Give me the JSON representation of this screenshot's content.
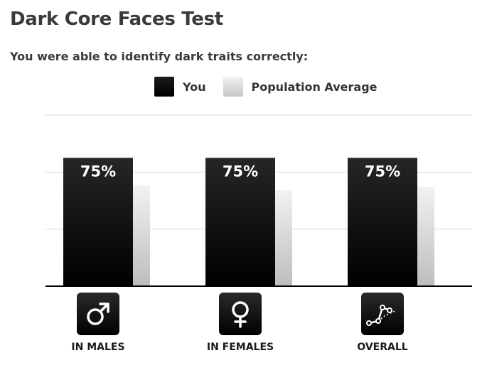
{
  "page": {
    "title": "Dark Core Faces Test",
    "subtitle": "You were able to identify dark traits correctly:"
  },
  "legend": {
    "you_label": "You",
    "avg_label": "Population Average"
  },
  "icons": [
    "male-symbol-icon",
    "female-symbol-icon",
    "line-graph-icon"
  ],
  "colors": {
    "you_bar": "#000000",
    "avg_bar_top": "#f2f2f2",
    "avg_bar_bottom": "#c2c2c2",
    "gridline": "#d9d9d9",
    "axis": "#000000"
  },
  "chart_data": {
    "type": "bar",
    "title": "Dark Core Faces Test",
    "categories": [
      "IN MALES",
      "IN FEMALES",
      "OVERALL"
    ],
    "series": [
      {
        "name": "You",
        "values": [
          75,
          75,
          75
        ],
        "data_labels": [
          "75%",
          "75%",
          "75%"
        ]
      },
      {
        "name": "Population Average",
        "values": [
          59,
          56,
          58
        ]
      }
    ],
    "ylim": [
      0,
      100
    ],
    "grid": true,
    "legend_position": "top"
  }
}
